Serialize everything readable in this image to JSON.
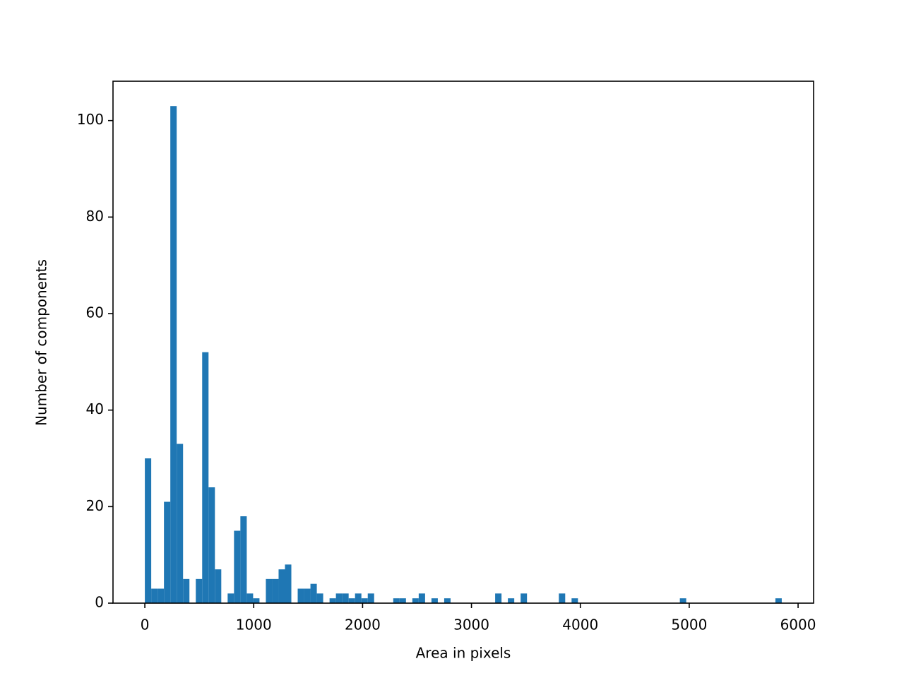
{
  "chart_data": {
    "type": "histogram",
    "xlabel": "Area in pixels",
    "ylabel": "Number of components",
    "color": "#1f77b4",
    "bins": [
      0,
      58.5,
      117,
      175.5,
      234,
      292.5,
      351,
      409.5,
      468,
      526.5,
      585,
      643.5,
      702,
      760.5,
      819,
      877.5,
      936,
      994.5,
      1053,
      1111.5,
      1170,
      1228.5,
      1287,
      1345.5,
      1404,
      1462.5,
      1521,
      1579.5,
      1638,
      1696.5,
      1755,
      1813.5,
      1872,
      1930.5,
      1989,
      2047.5,
      2106,
      2164.5,
      2223,
      2281.5,
      2340,
      2398.5,
      2457,
      2515.5,
      2574,
      2632.5,
      2691,
      2749.5,
      2808,
      2866.5,
      2925,
      2983.5,
      3042,
      3100.5,
      3159,
      3217.5,
      3276,
      3334.5,
      3393,
      3451.5,
      3510,
      3568.5,
      3627,
      3685.5,
      3744,
      3802.5,
      3861,
      3919.5,
      3978,
      4036.5,
      4095,
      4153.5,
      4212,
      4270.5,
      4329,
      4387.5,
      4446,
      4504.5,
      4563,
      4621.5,
      4680,
      4738.5,
      4797,
      4855.5,
      4914,
      4972.5,
      5031,
      5089.5,
      5148,
      5206.5,
      5265,
      5323.5,
      5382,
      5440.5,
      5499,
      5557.5,
      5616,
      5674.5,
      5733,
      5791.5,
      5850
    ],
    "counts": [
      30,
      3,
      3,
      21,
      103,
      33,
      5,
      0,
      5,
      52,
      24,
      7,
      0,
      2,
      15,
      18,
      2,
      1,
      0,
      5,
      5,
      7,
      8,
      0,
      3,
      3,
      4,
      2,
      0,
      1,
      2,
      2,
      1,
      2,
      1,
      2,
      0,
      0,
      0,
      1,
      1,
      0,
      1,
      2,
      0,
      1,
      0,
      1,
      0,
      0,
      0,
      0,
      0,
      0,
      0,
      2,
      0,
      1,
      0,
      2,
      0,
      0,
      0,
      0,
      0,
      2,
      0,
      1,
      0,
      0,
      0,
      0,
      0,
      0,
      0,
      0,
      0,
      0,
      0,
      0,
      0,
      0,
      0,
      0,
      1,
      0,
      0,
      0,
      0,
      0,
      0,
      0,
      0,
      0,
      0,
      0,
      0,
      0,
      0,
      1
    ],
    "xlim": [
      -292.5,
      6142.5
    ],
    "ylim": [
      0,
      108.15
    ],
    "xticks": [
      0,
      1000,
      2000,
      3000,
      4000,
      5000,
      6000
    ],
    "yticks": [
      0,
      20,
      40,
      60,
      80,
      100
    ]
  }
}
